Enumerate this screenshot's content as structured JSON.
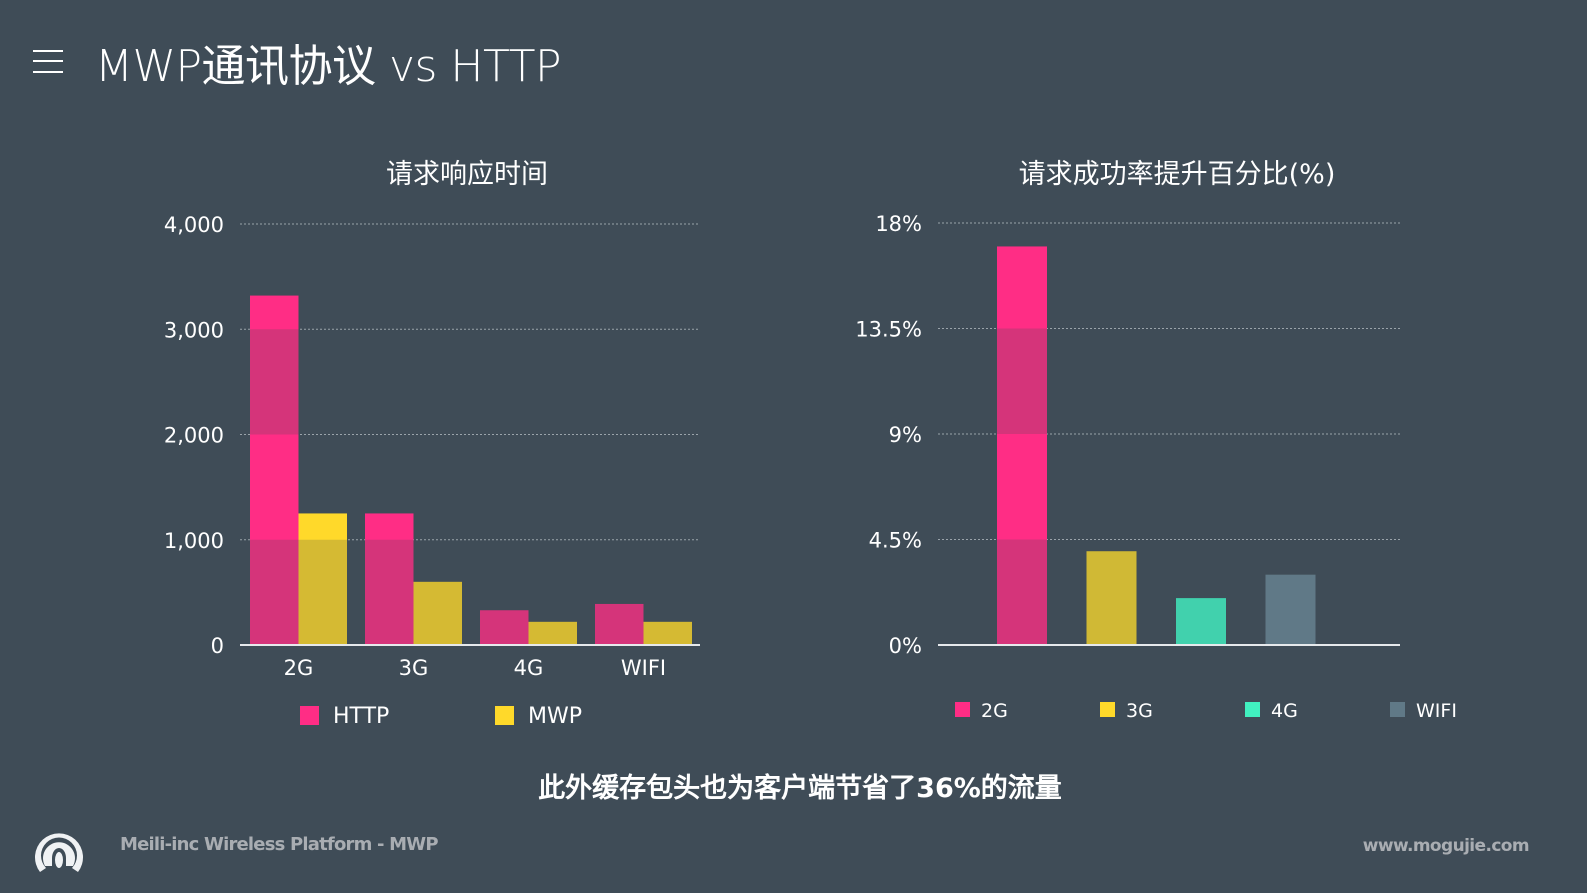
{
  "header": {
    "title": "MWP通讯协议 vs HTTP",
    "menu_icon": "hamburger-icon"
  },
  "chart_data": [
    {
      "type": "bar",
      "title": "请求响应时间",
      "categories": [
        "2G",
        "3G",
        "4G",
        "WIFI"
      ],
      "series": [
        {
          "name": "HTTP",
          "values": [
            3320,
            1250,
            330,
            390
          ],
          "color": "#ff2d85"
        },
        {
          "name": "MWP",
          "values": [
            1250,
            600,
            220,
            220
          ],
          "color": "#ffd92a"
        }
      ],
      "ylim": [
        0,
        4000
      ],
      "yticks": [
        0,
        1000,
        2000,
        3000,
        4000
      ],
      "ytick_labels": [
        "0",
        "1,000",
        "2,000",
        "3,000",
        "4,000"
      ],
      "grid": true,
      "legend": "bottom"
    },
    {
      "type": "bar",
      "title": "请求成功率提升百分比(%)",
      "categories": [
        "2G",
        "3G",
        "4G",
        "WIFI"
      ],
      "values": [
        17,
        4,
        2,
        3
      ],
      "colors": [
        "#ff2d85",
        "#d0b935",
        "#41d1ad",
        "#607987"
      ],
      "legend_colors": [
        "#ff2d85",
        "#ffd92a",
        "#41f0c0",
        "#607987"
      ],
      "ylim": [
        0,
        18
      ],
      "yticks": [
        0,
        4.5,
        9,
        13.5,
        18
      ],
      "ytick_labels": [
        "0%",
        "4.5%",
        "9%",
        "13.5%",
        "18%"
      ],
      "grid": true,
      "legend": "bottom"
    }
  ],
  "caption": "此外缓存包头也为客户端节省了36%的流量",
  "footer": {
    "brand": "Meili-inc Wireless Platform - MWP",
    "site": "www.mogujie.com",
    "logo_icon": "mogujie-logo-icon"
  }
}
